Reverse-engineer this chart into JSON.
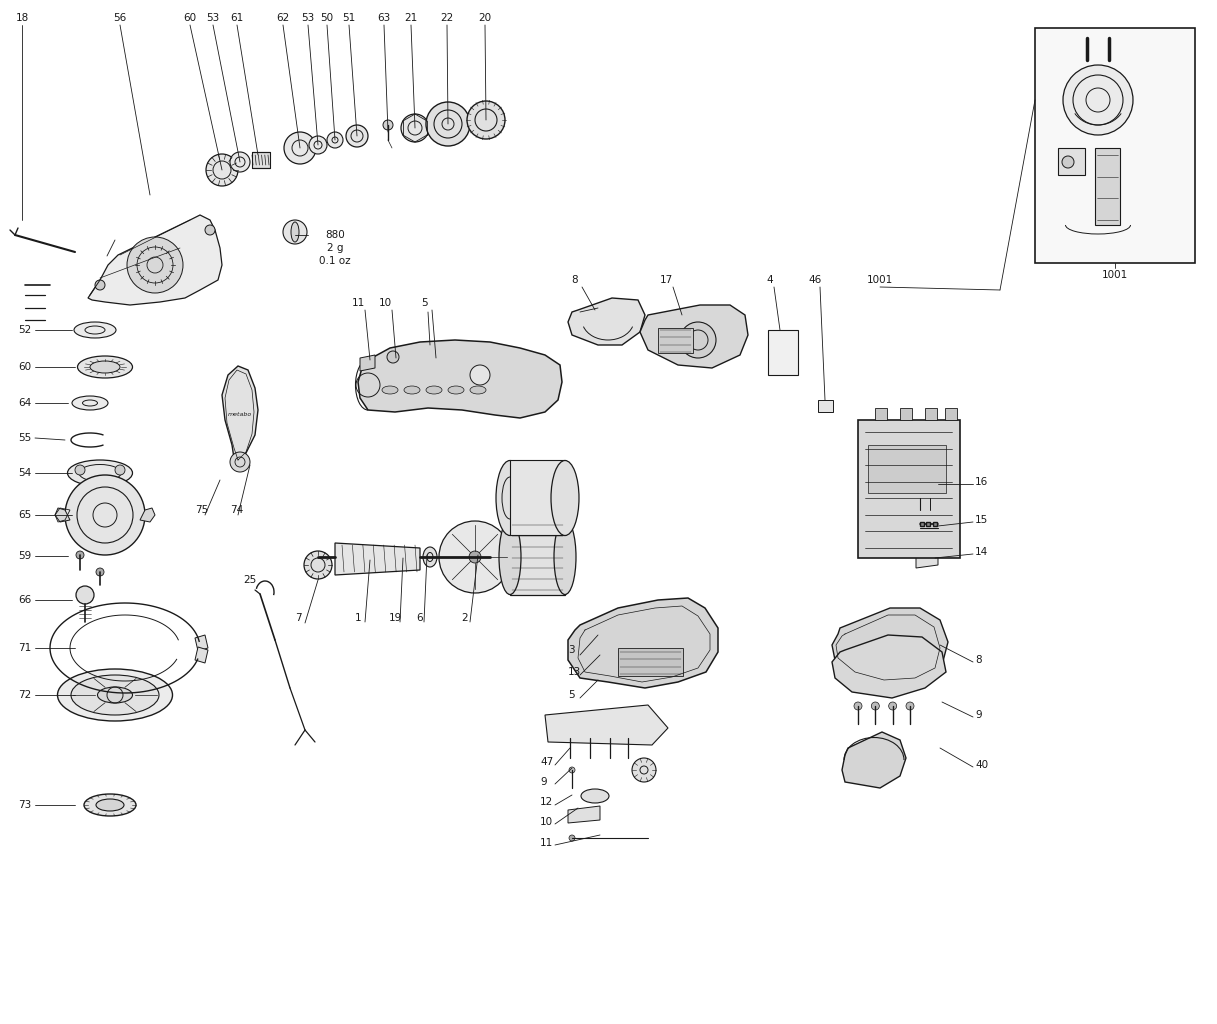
{
  "bg_color": "#ffffff",
  "line_color": "#1a1a1a",
  "label_color": "#111111",
  "fs": 7.5,
  "lw_main": 0.8,
  "figsize": [
    12.17,
    10.24
  ],
  "dpi": 100
}
